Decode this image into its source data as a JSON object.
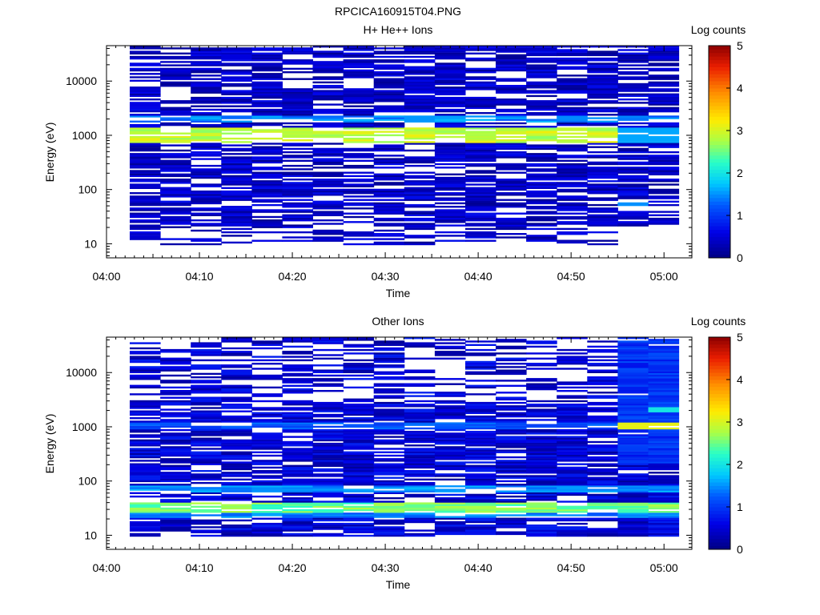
{
  "figure_title": "RPCICA160915T04.PNG",
  "chart_data": [
    {
      "type": "heatmap",
      "title": "H+ He++ Ions",
      "xlabel": "Time",
      "ylabel": "Energy (eV)",
      "x_ticks": [
        "04:00",
        "04:10",
        "04:20",
        "04:30",
        "04:40",
        "04:50",
        "05:00"
      ],
      "x_range": [
        "04:00",
        "05:03"
      ],
      "y_scale": "log",
      "y_ticks": [
        10,
        100,
        1000,
        10000
      ],
      "y_tick_labels": [
        "10",
        "100",
        "1000",
        "10000"
      ],
      "y_range": [
        5.5,
        45000
      ],
      "colorbar": {
        "label": "Log counts",
        "min": 0,
        "max": 5,
        "ticks": [
          "0",
          "1",
          "2",
          "3",
          "4",
          "5"
        ]
      },
      "time_bin_starts": [
        "04:02.5",
        "04:05.8",
        "04:09.0",
        "04:12.3",
        "04:15.5",
        "04:18.7",
        "04:22.0",
        "04:25.2",
        "04:28.5",
        "04:31.7",
        "04:35.0",
        "04:38.2",
        "04:41.4",
        "04:44.7",
        "04:47.9",
        "04:51.2",
        "04:54.4",
        "04:57.7"
      ],
      "features": [
        {
          "energy_ev": 1000,
          "log_counts": 3.0,
          "description_note": ""
        },
        {
          "energy_ev": 2000,
          "log_counts": 1.6
        }
      ]
    },
    {
      "type": "heatmap",
      "title": "Other Ions",
      "xlabel": "Time",
      "ylabel": "Energy (eV)",
      "x_ticks": [
        "04:00",
        "04:10",
        "04:20",
        "04:30",
        "04:40",
        "04:50",
        "05:00"
      ],
      "x_range": [
        "04:00",
        "05:03"
      ],
      "y_scale": "log",
      "y_ticks": [
        10,
        100,
        1000,
        10000
      ],
      "y_tick_labels": [
        "10",
        "100",
        "1000",
        "10000"
      ],
      "y_range": [
        5.5,
        45000
      ],
      "colorbar": {
        "label": "Log counts",
        "min": 0,
        "max": 5,
        "ticks": [
          "0",
          "1",
          "2",
          "3",
          "4",
          "5"
        ]
      },
      "features": [
        {
          "energy_ev": 32,
          "log_counts": 2.5
        },
        {
          "energy_ev": 70,
          "log_counts": 1.5
        },
        {
          "energy_ev": 1000,
          "log_counts": 1.3
        }
      ]
    }
  ]
}
